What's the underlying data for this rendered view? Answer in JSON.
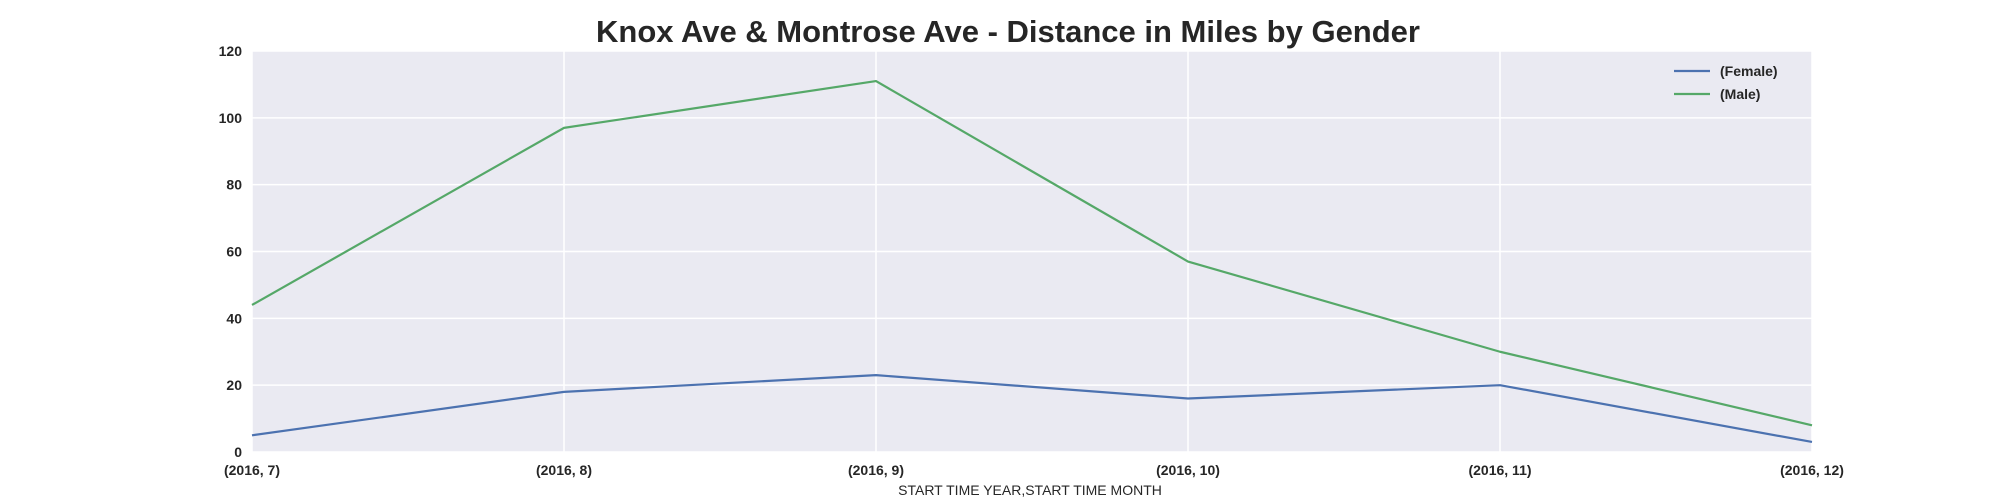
{
  "chart_data": {
    "type": "line",
    "title": "Knox Ave & Montrose Ave - Distance in Miles by Gender",
    "xlabel": "START TIME YEAR,START TIME MONTH",
    "ylabel": "",
    "categories": [
      "(2016, 7)",
      "(2016, 8)",
      "(2016, 9)",
      "(2016, 10)",
      "(2016, 11)",
      "(2016, 12)"
    ],
    "yticks": [
      0,
      20,
      40,
      60,
      80,
      100,
      120
    ],
    "ylim": [
      0,
      120
    ],
    "grid": true,
    "legend_position": "top-right",
    "series": [
      {
        "name": "(Female)",
        "color": "#4c72b0",
        "values": [
          5,
          18,
          23,
          16,
          20,
          3
        ]
      },
      {
        "name": "(Male)",
        "color": "#55a868",
        "values": [
          44,
          97,
          111,
          57,
          30,
          8
        ]
      }
    ]
  },
  "colors": {
    "plot_background": "#eaeaf2",
    "grid": "#ffffff"
  }
}
